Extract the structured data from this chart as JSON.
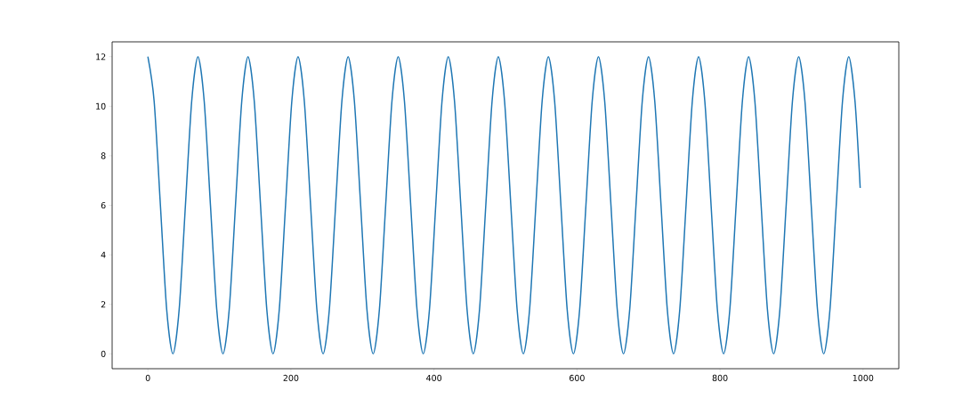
{
  "chart_data": {
    "type": "line",
    "x": [
      0,
      8.75,
      17.5,
      26.25,
      35,
      43.75,
      52.5,
      61.25,
      70,
      78.75,
      87.5,
      96.25,
      105,
      113.75,
      122.5,
      131.25,
      140,
      148.75,
      157.5,
      166.25,
      175,
      183.75,
      192.5,
      201.25,
      210,
      218.75,
      227.5,
      236.25,
      245,
      253.75,
      262.5,
      271.25,
      280,
      288.75,
      297.5,
      306.25,
      315,
      323.75,
      332.5,
      341.25,
      350,
      358.75,
      367.5,
      376.25,
      385,
      393.75,
      402.5,
      411.25,
      420,
      428.75,
      437.5,
      446.25,
      455,
      463.75,
      472.5,
      481.25,
      490,
      498.75,
      507.5,
      516.25,
      525,
      533.75,
      542.5,
      551.25,
      560,
      568.75,
      577.5,
      586.25,
      595,
      603.75,
      612.5,
      621.25,
      630,
      638.75,
      647.5,
      656.25,
      665,
      673.75,
      682.5,
      691.25,
      700,
      708.75,
      717.5,
      726.25,
      735,
      743.75,
      752.5,
      761.25,
      770,
      778.75,
      787.5,
      796.25,
      805,
      813.75,
      822.5,
      831.25,
      840,
      848.75,
      857.5,
      866.25,
      875,
      883.75,
      892.5,
      901.25,
      910,
      918.75,
      927.5,
      936.25,
      945,
      953.75,
      962.5,
      971.25,
      980,
      988.75,
      996
    ],
    "series": [
      {
        "color": "#1f77b4",
        "values": [
          12,
          10.2,
          6,
          1.8,
          0,
          1.8,
          6,
          10.2,
          12,
          10.2,
          6,
          1.8,
          0,
          1.8,
          6,
          10.2,
          12,
          10.2,
          6,
          1.8,
          0,
          1.8,
          6,
          10.2,
          12,
          10.2,
          6,
          1.8,
          0,
          1.8,
          6,
          10.2,
          12,
          10.2,
          6,
          1.8,
          0,
          1.8,
          6,
          10.2,
          12,
          10.2,
          6,
          1.8,
          0,
          1.8,
          6,
          10.2,
          12,
          10.2,
          6,
          1.8,
          0,
          1.8,
          6,
          10.2,
          12,
          10.2,
          6,
          1.8,
          0,
          1.8,
          6,
          10.2,
          12,
          10.2,
          6,
          1.8,
          0,
          1.8,
          6,
          10.2,
          12,
          10.2,
          6,
          1.8,
          0,
          1.8,
          6,
          10.2,
          12,
          10.2,
          6,
          1.8,
          0,
          1.8,
          6,
          10.2,
          12,
          10.2,
          6,
          1.8,
          0,
          1.8,
          6,
          10.2,
          12,
          10.2,
          6,
          1.8,
          0,
          1.8,
          6,
          10.2,
          12,
          10.2,
          6,
          1.8,
          0,
          1.8,
          6,
          10.2,
          12,
          10.2,
          6.7
        ]
      }
    ],
    "xlim": [
      -50,
      1050
    ],
    "ylim": [
      -0.6,
      12.6
    ],
    "xticks": [
      0,
      200,
      400,
      600,
      800,
      1000
    ],
    "yticks": [
      0,
      2,
      4,
      6,
      8,
      10,
      12
    ],
    "marker": "none",
    "line_style": "solid",
    "grid": false
  }
}
